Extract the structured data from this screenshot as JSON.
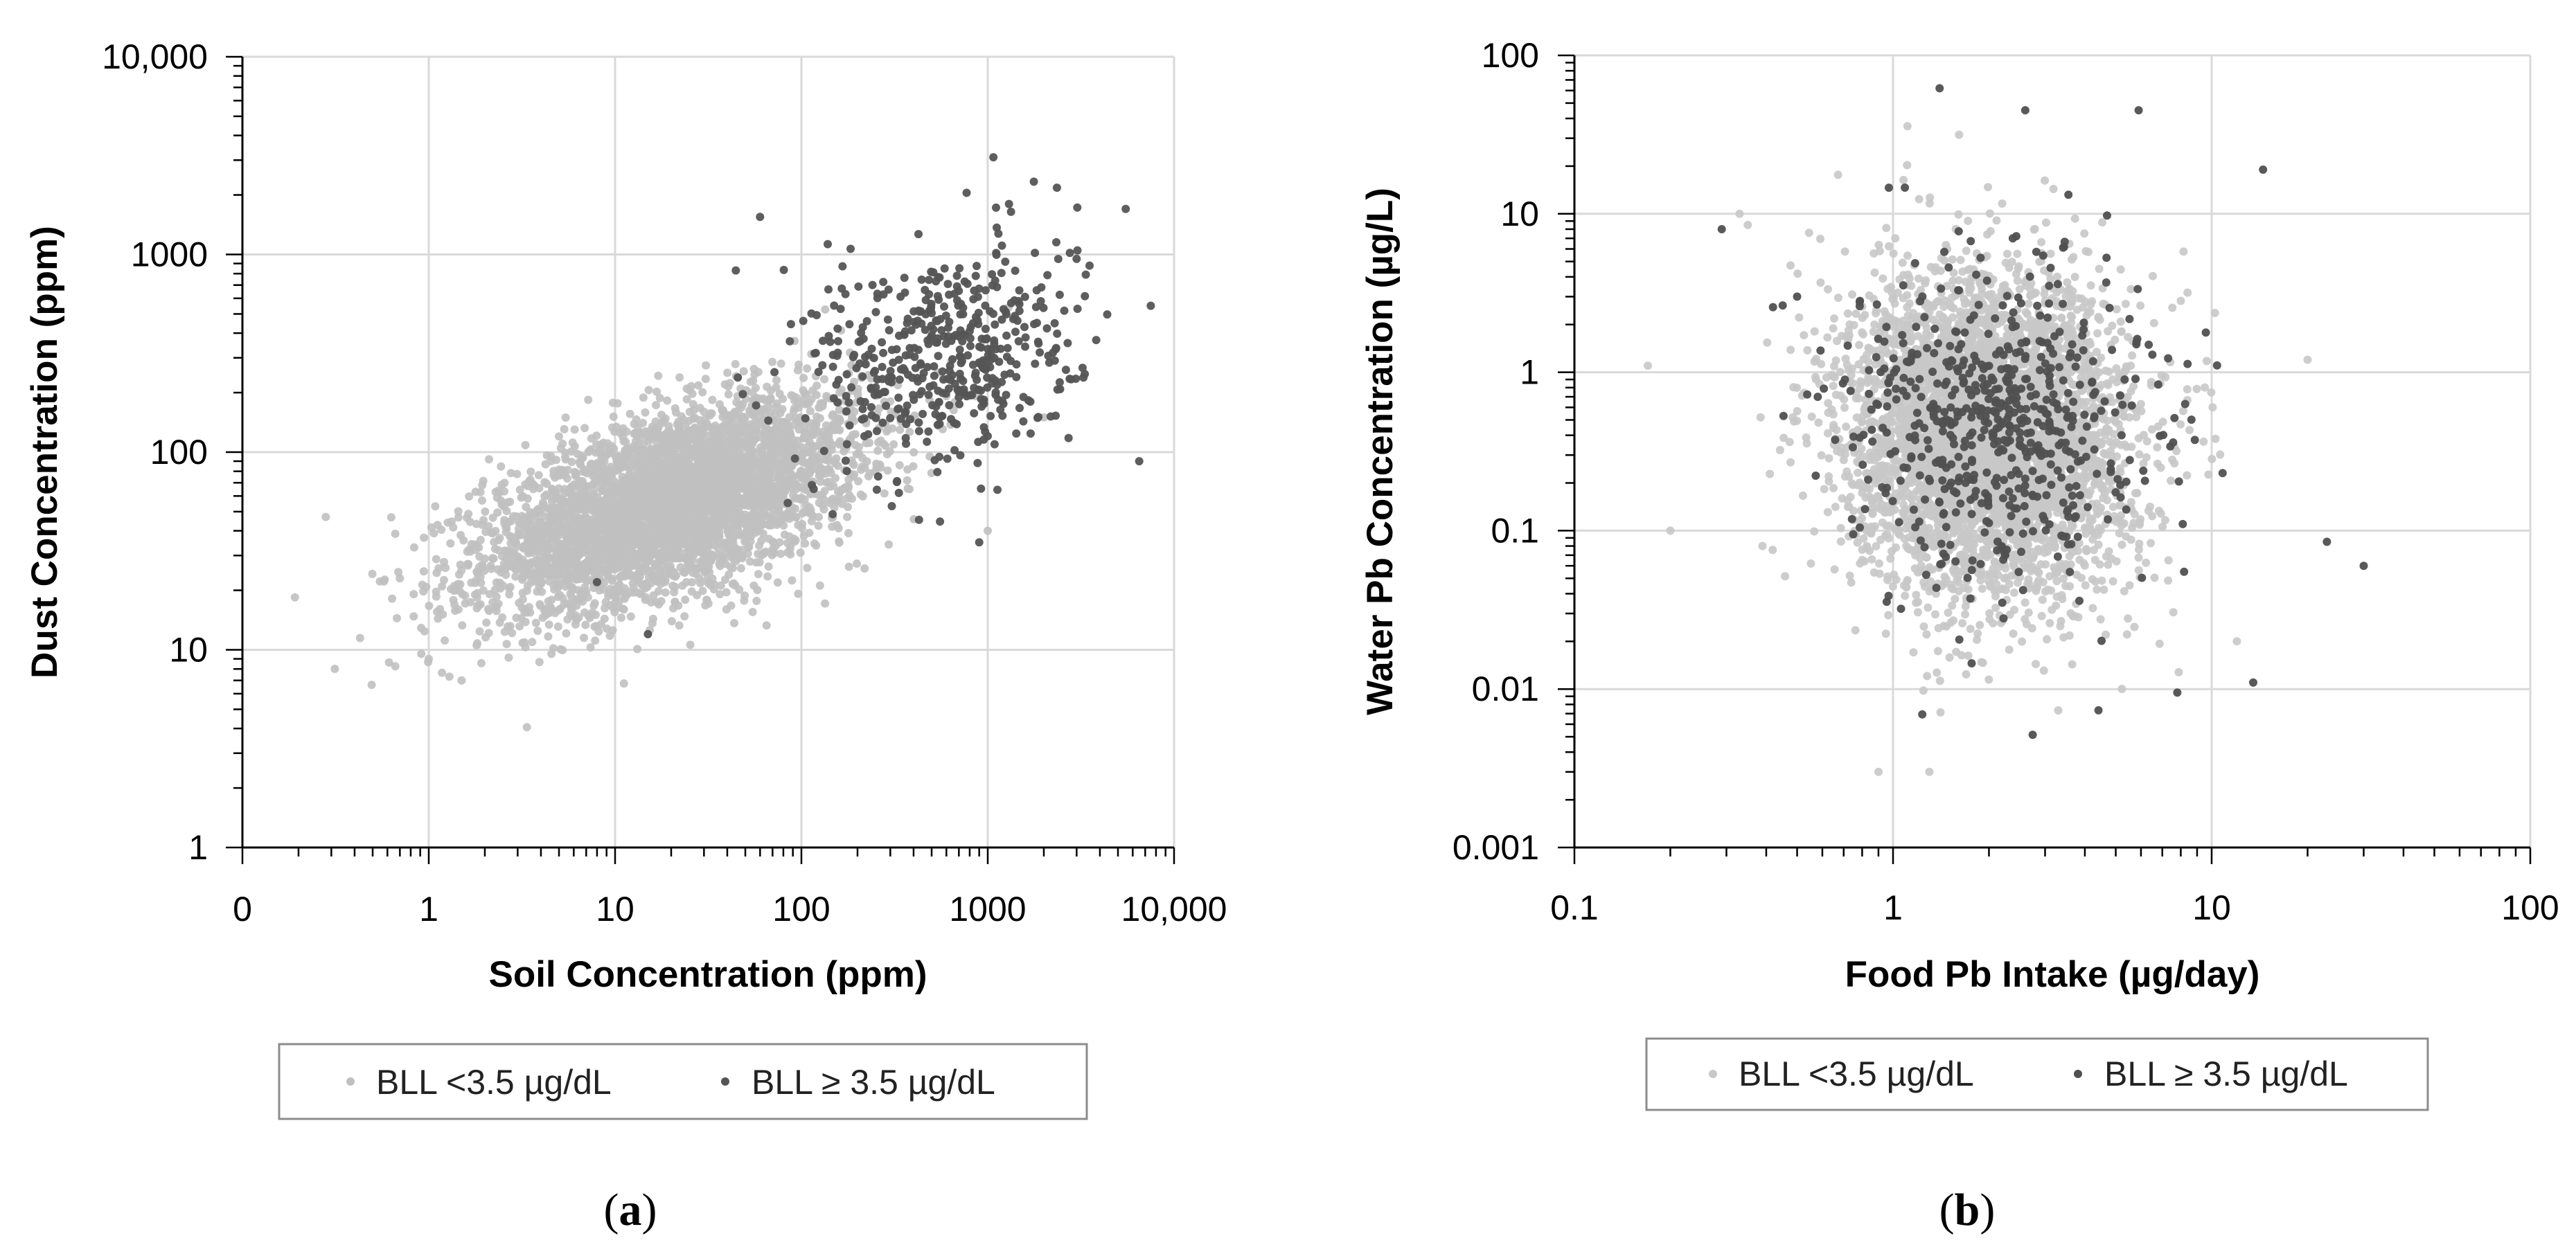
{
  "chart_data": [
    {
      "panel": "(a)",
      "panel_letter": "a",
      "type": "scatter",
      "scale": "log-log",
      "title": "",
      "xlabel": "Soil Concentration (ppm)",
      "ylabel": "Dust Concentration (ppm)",
      "xlim": [
        0.1,
        10000
      ],
      "ylim": [
        1,
        10000
      ],
      "x_ticks": [
        0.1,
        1,
        10,
        100,
        1000,
        10000
      ],
      "x_tick_labels": [
        "0",
        "1",
        "10",
        "100",
        "1000",
        "10,000"
      ],
      "y_ticks": [
        1,
        10,
        100,
        1000,
        10000
      ],
      "y_tick_labels": [
        "1",
        "10",
        "100",
        "1000",
        "10,000"
      ],
      "grid": true,
      "legend_position": "bottom",
      "series": [
        {
          "name": "BLL <3.5 µg/dL",
          "color": "#c0c0c0",
          "n_points": 4500,
          "distribution": "lognormal cloud, soil median ~20 ppm, dust median ~55 ppm, positively correlated",
          "center": {
            "x": 20,
            "y": 55
          },
          "sample_points": [
            [
              0.28,
              47
            ],
            [
              0.7,
              23
            ],
            [
              1,
              9
            ],
            [
              1.5,
              7
            ],
            [
              5,
              120
            ],
            [
              30,
              160
            ],
            [
              100,
              90
            ],
            [
              200,
              200
            ],
            [
              2000,
              150
            ],
            [
              1000,
              40
            ]
          ]
        },
        {
          "name": "BLL ≥ 3.5 µg/dL",
          "color": "#555555",
          "n_points": 500,
          "distribution": "lognormal cloud, soil median ~600 ppm, dust median ~300 ppm",
          "center": {
            "x": 600,
            "y": 300
          },
          "sample_points": [
            [
              770,
              2050
            ],
            [
              1300,
              1800
            ],
            [
              5500,
              1700
            ],
            [
              3000,
              950
            ],
            [
              7500,
              550
            ],
            [
              6500,
              90
            ],
            [
              900,
              35
            ],
            [
              60,
              1550
            ],
            [
              15,
              12
            ],
            [
              8,
              22
            ]
          ]
        }
      ]
    },
    {
      "panel": "(b)",
      "panel_letter": "b",
      "type": "scatter",
      "scale": "log-log",
      "title": "",
      "xlabel": "Food Pb Intake (µg/day)",
      "ylabel": "Water Pb Concentration (µg/L)",
      "xlim": [
        0.1,
        100
      ],
      "ylim": [
        0.001,
        100
      ],
      "x_ticks": [
        0.1,
        1,
        10,
        100
      ],
      "x_tick_labels": [
        "0.1",
        "1",
        "10",
        "100"
      ],
      "y_ticks": [
        0.001,
        0.01,
        0.1,
        1,
        10,
        100
      ],
      "y_tick_labels": [
        "0.001",
        "0.01",
        "0.1",
        "1",
        "10",
        "100"
      ],
      "grid": true,
      "legend_position": "bottom",
      "series": [
        {
          "name": "BLL <3.5 µg/dL",
          "color": "#c8c8c8",
          "n_points": 4500,
          "distribution": "lognormal cloud, food median ~2 µg/day, water median ~0.4 µg/L, uncorrelated",
          "center": {
            "x": 2,
            "y": 0.4
          },
          "sample_points": [
            [
              0.17,
              1.1
            ],
            [
              0.2,
              0.1
            ],
            [
              0.33,
              10
            ],
            [
              0.35,
              8.5
            ],
            [
              0.9,
              0.003
            ],
            [
              1.3,
              0.003
            ],
            [
              12,
              0.02
            ],
            [
              20,
              1.2
            ]
          ]
        },
        {
          "name": "BLL ≥ 3.5 µg/dL",
          "color": "#505050",
          "n_points": 600,
          "distribution": "lognormal cloud, food median ~2.2 µg/day, water median ~0.5 µg/L",
          "center": {
            "x": 2.2,
            "y": 0.5
          },
          "sample_points": [
            [
              1.4,
              62
            ],
            [
              2.6,
              45
            ],
            [
              5.9,
              45
            ],
            [
              14.5,
              19
            ],
            [
              23,
              0.085
            ],
            [
              30,
              0.06
            ],
            [
              13.5,
              0.011
            ],
            [
              7.8,
              0.0095
            ],
            [
              0.29,
              8
            ],
            [
              0.5,
              3
            ]
          ]
        }
      ]
    }
  ]
}
